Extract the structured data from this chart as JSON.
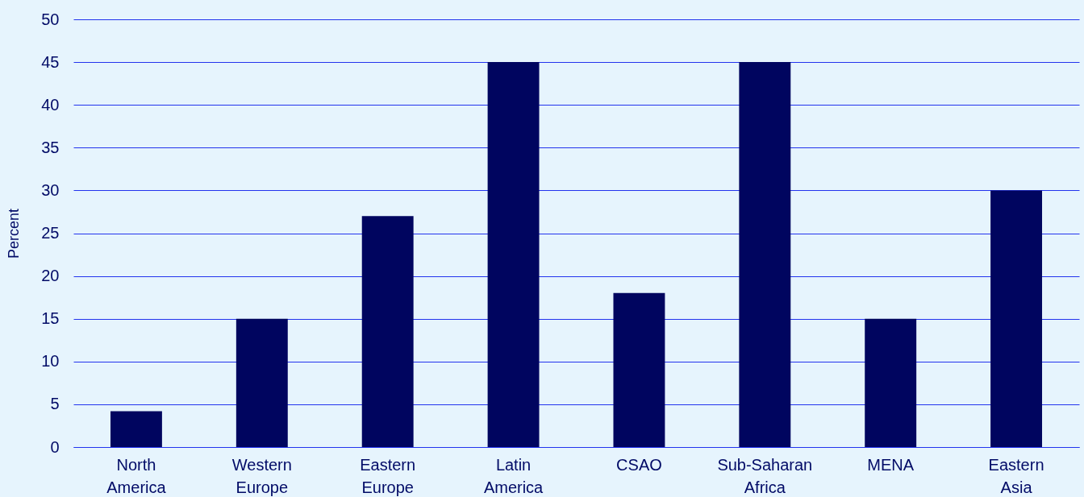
{
  "chart_data": {
    "type": "bar",
    "ylabel": "Percent",
    "categories": [
      "North America",
      "Western Europe",
      "Eastern Europe",
      "Latin America",
      "CSAO",
      "Sub-Saharan Africa",
      "MENA",
      "Eastern Asia"
    ],
    "values": [
      4.2,
      15,
      27,
      45,
      18,
      45,
      15,
      30
    ],
    "color": "#00055f",
    "ylim": [
      0,
      50
    ],
    "yticks": [
      0,
      5,
      10,
      15,
      20,
      25,
      30,
      35,
      40,
      45,
      50
    ],
    "grid": "y"
  }
}
